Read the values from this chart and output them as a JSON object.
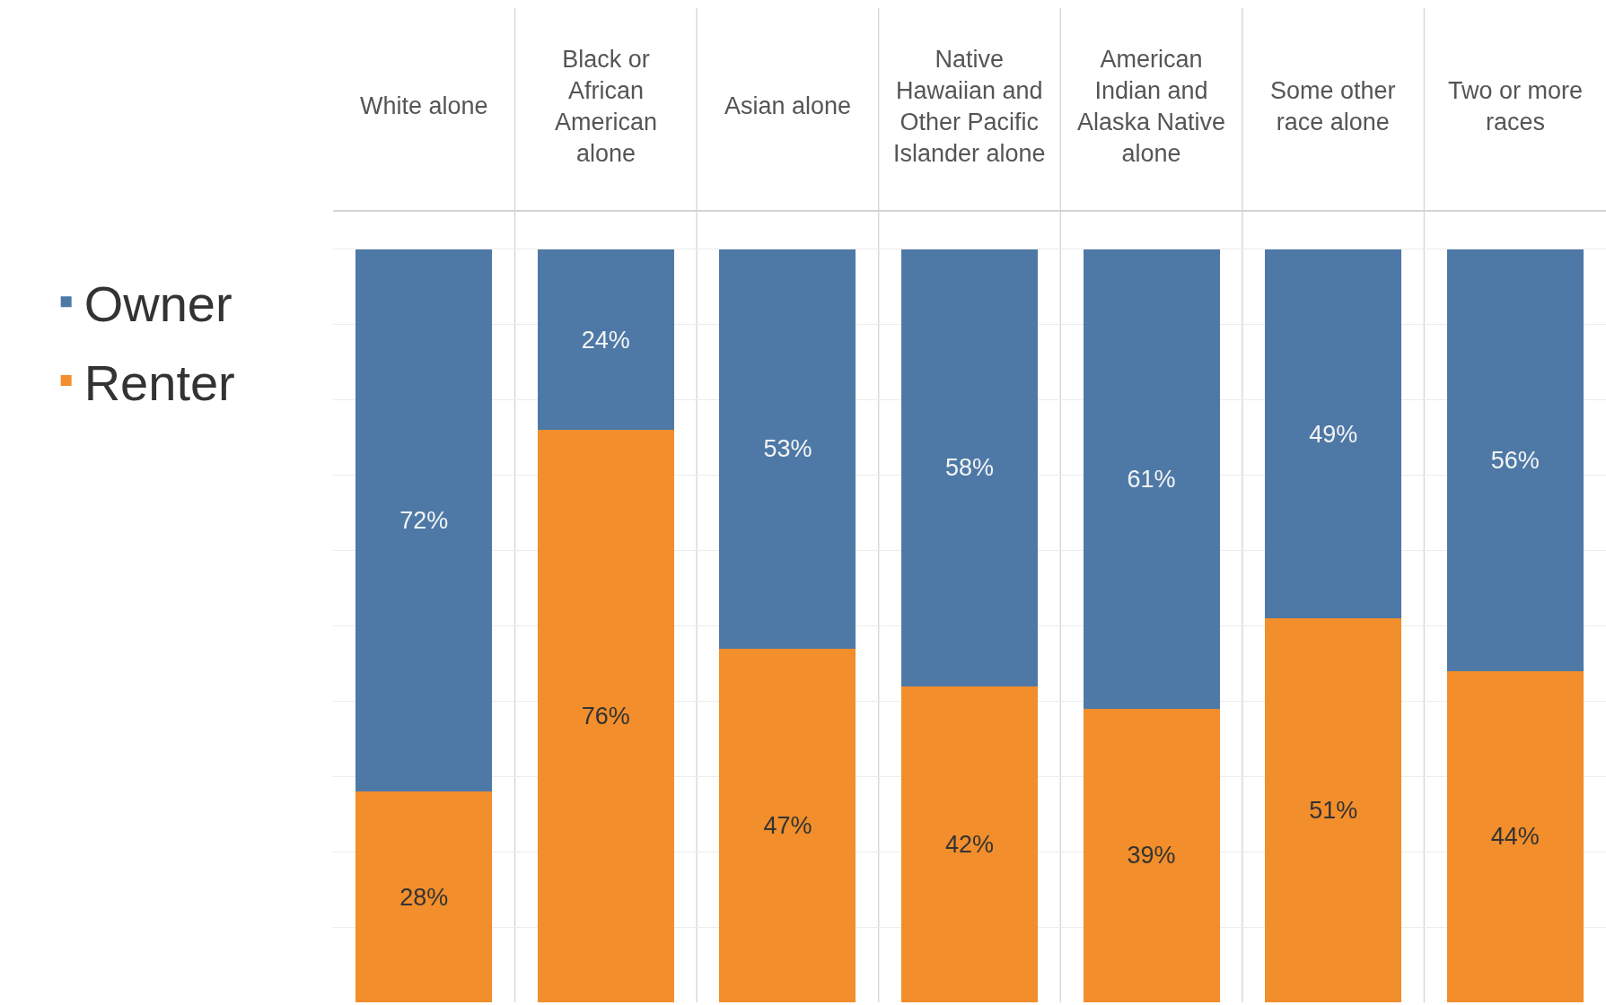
{
  "chart_data": {
    "type": "bar",
    "stacked": true,
    "categories": [
      "White alone",
      "Black or African American alone",
      "Asian alone",
      "Native Hawaiian and Other Pacific Islander alone",
      "American Indian and Alaska Native alone",
      "Some other race alone",
      "Two or more races"
    ],
    "series": [
      {
        "name": "Renter",
        "color": "#f28e2b",
        "values": [
          28,
          76,
          47,
          42,
          39,
          51,
          44
        ],
        "value_labels": [
          "28%",
          "76%",
          "47%",
          "42%",
          "39%",
          "51%",
          "44%"
        ]
      },
      {
        "name": "Owner",
        "color": "#4e79a7",
        "values": [
          72,
          24,
          53,
          58,
          61,
          49,
          56
        ],
        "value_labels": [
          "72%",
          "24%",
          "53%",
          "58%",
          "61%",
          "49%",
          "56%"
        ]
      }
    ],
    "ylim": [
      0,
      105
    ],
    "yticks": [
      {
        "value": 0,
        "label": null
      },
      {
        "value": 10,
        "label": null
      },
      {
        "value": 20,
        "label": null
      },
      {
        "value": 30,
        "label": null
      },
      {
        "value": 40,
        "label": null
      },
      {
        "value": 50,
        "label": null
      },
      {
        "value": 60,
        "label": null
      },
      {
        "value": 70,
        "label": null
      },
      {
        "value": 80,
        "label": null
      },
      {
        "value": 90,
        "label": null
      },
      {
        "value": 100,
        "label": null
      }
    ],
    "grid": true,
    "legend": "left",
    "tick_labels": "x"
  }
}
